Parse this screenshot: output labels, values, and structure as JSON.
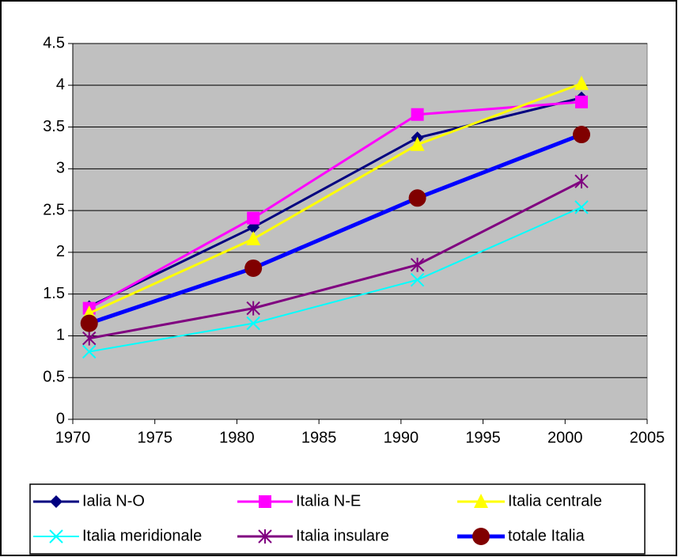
{
  "chart_data": {
    "type": "line",
    "x": [
      1971,
      1981,
      1991,
      2001
    ],
    "series": [
      {
        "name": "Ialia N-O",
        "color": "#000080",
        "marker": "diamond",
        "marker_color": "#000080",
        "line_width": 3,
        "values": [
          1.35,
          2.3,
          3.37,
          3.85
        ]
      },
      {
        "name": "Italia N-E",
        "color": "#ff00ff",
        "marker": "square",
        "marker_color": "#ff00ff",
        "line_width": 3,
        "values": [
          1.33,
          2.41,
          3.65,
          3.8
        ]
      },
      {
        "name": "Italia centrale",
        "color": "#ffff00",
        "marker": "triangle",
        "marker_color": "#ffff00",
        "line_width": 3,
        "values": [
          1.27,
          2.16,
          3.29,
          4.02
        ]
      },
      {
        "name": "Italia meridionale",
        "color": "#00ffff",
        "marker": "x",
        "marker_color": "#00ffff",
        "line_width": 2,
        "values": [
          0.81,
          1.15,
          1.67,
          2.54
        ]
      },
      {
        "name": "Italia insulare",
        "color": "#800080",
        "marker": "star",
        "marker_color": "#800080",
        "line_width": 3,
        "values": [
          0.97,
          1.33,
          1.85,
          2.85
        ]
      },
      {
        "name": "totale Italia",
        "color": "#0000ff",
        "marker": "circle",
        "marker_color": "#800000",
        "line_width": 5,
        "values": [
          1.15,
          1.81,
          2.65,
          3.41
        ]
      }
    ],
    "xlim": [
      1970,
      2005
    ],
    "xticks": [
      1970,
      1975,
      1980,
      1985,
      1990,
      1995,
      2000,
      2005
    ],
    "ylim": [
      0,
      4.5
    ],
    "yticks": [
      0,
      0.5,
      1,
      1.5,
      2,
      2.5,
      3,
      3.5,
      4,
      4.5
    ],
    "grid": true,
    "plot_background": "#c0c0c0",
    "legend": "bottom"
  }
}
